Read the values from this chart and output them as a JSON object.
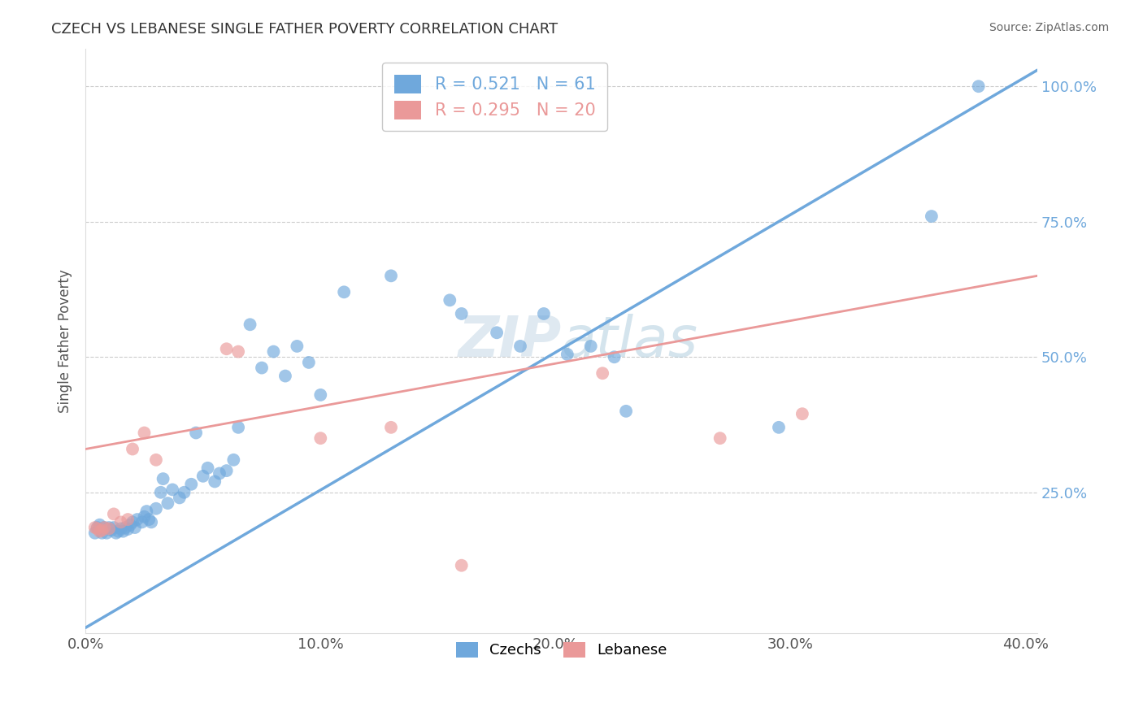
{
  "title": "CZECH VS LEBANESE SINGLE FATHER POVERTY CORRELATION CHART",
  "source": "Source: ZipAtlas.com",
  "ylabel": "Single Father Poverty",
  "xlim": [
    0.0,
    0.405
  ],
  "ylim": [
    -0.01,
    1.07
  ],
  "ytick_values": [
    0.25,
    0.5,
    0.75,
    1.0
  ],
  "xtick_values": [
    0.0,
    0.1,
    0.2,
    0.3,
    0.4
  ],
  "czech_color": "#6fa8dc",
  "lebanese_color": "#ea9999",
  "czech_r": 0.521,
  "czech_n": 61,
  "lebanese_r": 0.295,
  "lebanese_n": 20,
  "czech_line_x": [
    0.0,
    0.405
  ],
  "czech_line_y": [
    0.0,
    1.03
  ],
  "leb_line_x": [
    0.0,
    0.405
  ],
  "leb_line_y": [
    0.33,
    0.65
  ],
  "czech_x": [
    0.004,
    0.005,
    0.006,
    0.007,
    0.008,
    0.009,
    0.01,
    0.011,
    0.012,
    0.013,
    0.014,
    0.015,
    0.016,
    0.017,
    0.018,
    0.019,
    0.02,
    0.021,
    0.022,
    0.024,
    0.025,
    0.026,
    0.027,
    0.028,
    0.03,
    0.032,
    0.033,
    0.035,
    0.037,
    0.04,
    0.042,
    0.045,
    0.047,
    0.05,
    0.052,
    0.055,
    0.057,
    0.06,
    0.063,
    0.065,
    0.07,
    0.075,
    0.08,
    0.085,
    0.09,
    0.095,
    0.1,
    0.11,
    0.13,
    0.155,
    0.16,
    0.175,
    0.185,
    0.195,
    0.205,
    0.215,
    0.225,
    0.23,
    0.295,
    0.36,
    0.38
  ],
  "czech_y": [
    0.175,
    0.185,
    0.19,
    0.175,
    0.185,
    0.175,
    0.185,
    0.18,
    0.185,
    0.175,
    0.178,
    0.183,
    0.178,
    0.185,
    0.182,
    0.19,
    0.195,
    0.185,
    0.2,
    0.195,
    0.205,
    0.215,
    0.2,
    0.195,
    0.22,
    0.25,
    0.275,
    0.23,
    0.255,
    0.24,
    0.25,
    0.265,
    0.36,
    0.28,
    0.295,
    0.27,
    0.285,
    0.29,
    0.31,
    0.37,
    0.56,
    0.48,
    0.51,
    0.465,
    0.52,
    0.49,
    0.43,
    0.62,
    0.65,
    0.605,
    0.58,
    0.545,
    0.52,
    0.58,
    0.505,
    0.52,
    0.5,
    0.4,
    0.37,
    0.76,
    1.0
  ],
  "leb_x": [
    0.004,
    0.005,
    0.006,
    0.007,
    0.008,
    0.01,
    0.012,
    0.015,
    0.018,
    0.02,
    0.025,
    0.03,
    0.06,
    0.065,
    0.1,
    0.13,
    0.16,
    0.22,
    0.27,
    0.305
  ],
  "leb_y": [
    0.185,
    0.183,
    0.178,
    0.18,
    0.185,
    0.183,
    0.21,
    0.195,
    0.2,
    0.33,
    0.36,
    0.31,
    0.515,
    0.51,
    0.35,
    0.37,
    0.115,
    0.47,
    0.35,
    0.395
  ]
}
